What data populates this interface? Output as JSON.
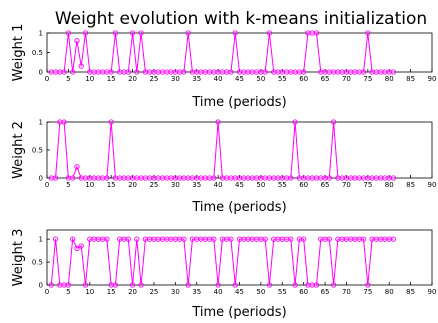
{
  "figure": {
    "title": "Weight evolution with k-means initialization"
  },
  "colors": {
    "series": "#ff00ff",
    "axis": "#000000",
    "background": "#ffffff"
  },
  "chart_data": [
    {
      "type": "line",
      "ylabel": "Weight 1",
      "xlabel": "Time (periods)",
      "xlim": [
        0,
        90
      ],
      "ylim": [
        0,
        1
      ],
      "xticks": [
        0,
        5,
        10,
        15,
        20,
        25,
        30,
        35,
        40,
        45,
        50,
        55,
        60,
        65,
        70,
        75,
        80,
        85,
        90
      ],
      "yticks": [
        0,
        0.5,
        1
      ],
      "ytick_labels": [
        "0",
        "0.5",
        "1"
      ],
      "marker": "circle",
      "grid": false,
      "x": [
        1,
        2,
        3,
        4,
        5,
        6,
        7,
        8,
        9,
        10,
        11,
        12,
        13,
        14,
        15,
        16,
        17,
        18,
        19,
        20,
        21,
        22,
        23,
        24,
        25,
        26,
        27,
        28,
        29,
        30,
        31,
        32,
        33,
        34,
        35,
        36,
        37,
        38,
        39,
        40,
        41,
        42,
        43,
        44,
        45,
        46,
        47,
        48,
        49,
        50,
        51,
        52,
        53,
        54,
        55,
        56,
        57,
        58,
        59,
        60,
        61,
        62,
        63,
        64,
        65,
        66,
        67,
        68,
        69,
        70,
        71,
        72,
        73,
        74,
        75,
        76,
        77,
        78,
        79,
        80,
        81
      ],
      "y": [
        0,
        0,
        0,
        0,
        1,
        0,
        0.8,
        0.15,
        1,
        0,
        0,
        0,
        0,
        0,
        0,
        1,
        0,
        0,
        0,
        1,
        0,
        1,
        0,
        0,
        0,
        0,
        0,
        0,
        0,
        0,
        0,
        0,
        1,
        0,
        0,
        0,
        0,
        0,
        0,
        0,
        0,
        0,
        0,
        1,
        0,
        0,
        0,
        0,
        0,
        0,
        0,
        1,
        0,
        0,
        0,
        0,
        0,
        0,
        0,
        0,
        1,
        1,
        1,
        0,
        0,
        0,
        0,
        0,
        0,
        0,
        0,
        0,
        0,
        0,
        1,
        0,
        0,
        0,
        0,
        0,
        0
      ]
    },
    {
      "type": "line",
      "ylabel": "Weight 2",
      "xlabel": "Time (periods)",
      "xlim": [
        0,
        90
      ],
      "ylim": [
        0,
        1
      ],
      "xticks": [
        0,
        5,
        10,
        15,
        20,
        25,
        30,
        35,
        40,
        45,
        50,
        55,
        60,
        65,
        70,
        75,
        80,
        85,
        90
      ],
      "yticks": [
        0,
        0.5,
        1
      ],
      "ytick_labels": [
        "0",
        "0.5",
        "1"
      ],
      "marker": "circle",
      "grid": false,
      "x": [
        1,
        2,
        3,
        4,
        5,
        6,
        7,
        8,
        9,
        10,
        11,
        12,
        13,
        14,
        15,
        16,
        17,
        18,
        19,
        20,
        21,
        22,
        23,
        24,
        25,
        26,
        27,
        28,
        29,
        30,
        31,
        32,
        33,
        34,
        35,
        36,
        37,
        38,
        39,
        40,
        41,
        42,
        43,
        44,
        45,
        46,
        47,
        48,
        49,
        50,
        51,
        52,
        53,
        54,
        55,
        56,
        57,
        58,
        59,
        60,
        61,
        62,
        63,
        64,
        65,
        66,
        67,
        68,
        69,
        70,
        71,
        72,
        73,
        74,
        75,
        76,
        77,
        78,
        79,
        80,
        81
      ],
      "y": [
        0,
        0,
        1,
        1,
        0,
        0,
        0.2,
        0,
        0,
        0,
        0,
        0,
        0,
        0,
        1,
        0,
        0,
        0,
        0,
        0,
        0,
        0,
        0,
        0,
        0,
        0,
        0,
        0,
        0,
        0,
        0,
        0,
        0,
        0,
        0,
        0,
        0,
        0,
        0,
        1,
        0,
        0,
        0,
        0,
        0,
        0,
        0,
        0,
        0,
        0,
        0,
        0,
        0,
        0,
        0,
        0,
        0,
        1,
        0,
        0,
        0,
        0,
        0,
        0,
        0,
        0,
        1,
        0,
        0,
        0,
        0,
        0,
        0,
        0,
        0,
        0,
        0,
        0,
        0,
        0,
        0
      ]
    },
    {
      "type": "line",
      "ylabel": "Weight 3",
      "xlabel": "Time (periods)",
      "xlim": [
        0,
        90
      ],
      "ylim": [
        0,
        1.2
      ],
      "xticks": [
        0,
        5,
        10,
        15,
        20,
        25,
        30,
        35,
        40,
        45,
        50,
        55,
        60,
        65,
        70,
        75,
        80,
        85,
        90
      ],
      "yticks": [
        0,
        0.5,
        1
      ],
      "ytick_labels": [
        "0",
        "0.5",
        "1"
      ],
      "marker": "circle",
      "grid": false,
      "x": [
        1,
        2,
        3,
        4,
        5,
        6,
        7,
        8,
        9,
        10,
        11,
        12,
        13,
        14,
        15,
        16,
        17,
        18,
        19,
        20,
        21,
        22,
        23,
        24,
        25,
        26,
        27,
        28,
        29,
        30,
        31,
        32,
        33,
        34,
        35,
        36,
        37,
        38,
        39,
        40,
        41,
        42,
        43,
        44,
        45,
        46,
        47,
        48,
        49,
        50,
        51,
        52,
        53,
        54,
        55,
        56,
        57,
        58,
        59,
        60,
        61,
        62,
        63,
        64,
        65,
        66,
        67,
        68,
        69,
        70,
        71,
        72,
        73,
        74,
        75,
        76,
        77,
        78,
        79,
        80,
        81
      ],
      "y": [
        0,
        1,
        0,
        0,
        0,
        1,
        0.8,
        0.85,
        0,
        1,
        1,
        1,
        1,
        1,
        0,
        0,
        1,
        1,
        1,
        0,
        1,
        0,
        1,
        1,
        1,
        1,
        1,
        1,
        1,
        1,
        1,
        1,
        0,
        1,
        1,
        1,
        1,
        1,
        1,
        0,
        1,
        1,
        1,
        0,
        1,
        1,
        1,
        1,
        1,
        1,
        1,
        0,
        1,
        1,
        1,
        1,
        1,
        0,
        1,
        1,
        0,
        0,
        0,
        1,
        1,
        1,
        0,
        1,
        1,
        1,
        1,
        1,
        1,
        1,
        0,
        1,
        1,
        1,
        1,
        1,
        1
      ]
    }
  ]
}
